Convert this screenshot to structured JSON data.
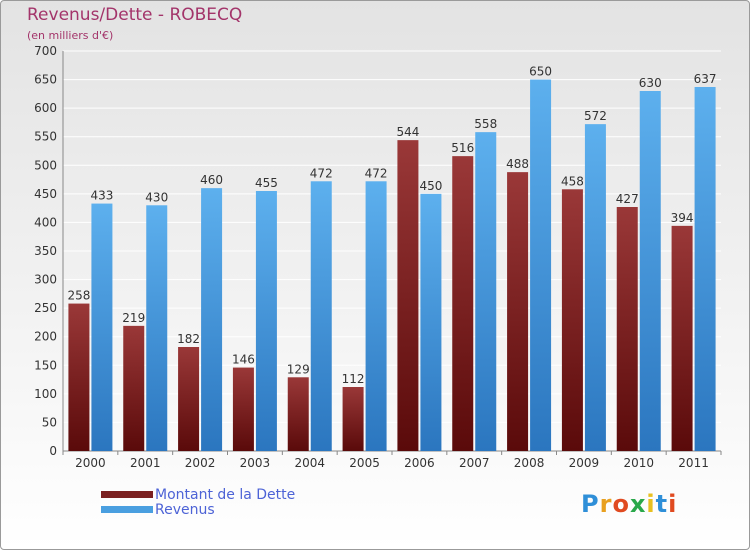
{
  "chart_data": {
    "type": "bar",
    "title": "Revenus/Dette - ROBECQ",
    "subtitle": "(en milliers d'€)",
    "categories": [
      "2000",
      "2001",
      "2002",
      "2003",
      "2004",
      "2005",
      "2006",
      "2007",
      "2008",
      "2009",
      "2010",
      "2011"
    ],
    "series": [
      {
        "name": "Montant de la Dette",
        "color": "#7a1f1f",
        "values": [
          258,
          219,
          182,
          146,
          129,
          112,
          544,
          516,
          488,
          458,
          427,
          394
        ]
      },
      {
        "name": "Revenus",
        "color": "#4a9fe0",
        "values": [
          433,
          430,
          460,
          455,
          472,
          472,
          450,
          558,
          650,
          572,
          630,
          637
        ]
      }
    ],
    "ylim": [
      0,
      700
    ],
    "yticks": [
      0,
      50,
      100,
      150,
      200,
      250,
      300,
      350,
      400,
      450,
      500,
      550,
      600,
      650,
      700
    ],
    "grid": true,
    "legend_position": "bottom-left"
  },
  "logo": {
    "letters": [
      "P",
      "r",
      "o",
      "x",
      "i",
      "t",
      "i"
    ],
    "colors": [
      "#2f8fd8",
      "#e8a020",
      "#e04a20",
      "#2aa84a",
      "#e8c020",
      "#2f8fd8",
      "#e04a20"
    ]
  }
}
